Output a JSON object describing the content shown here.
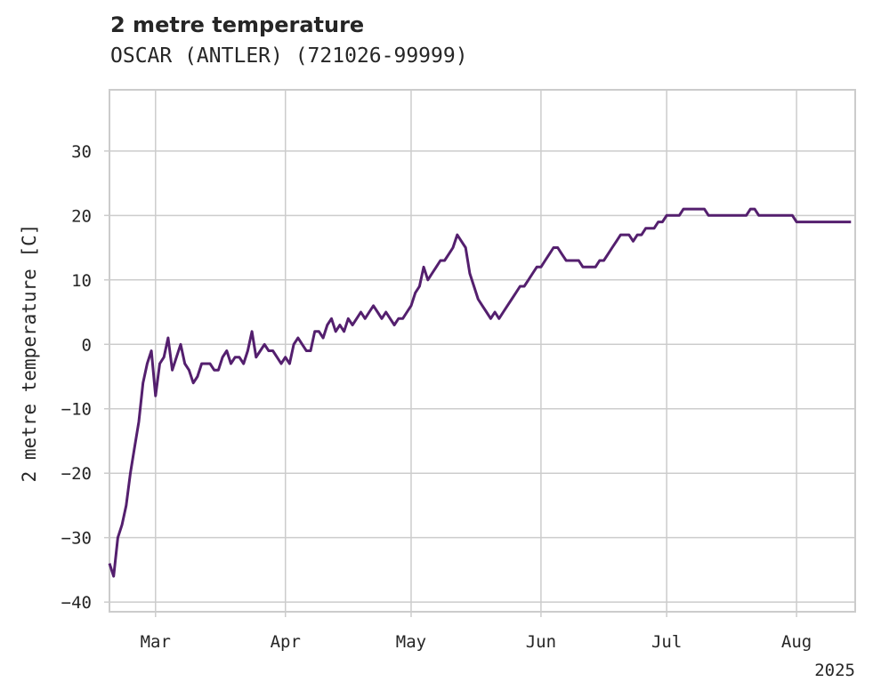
{
  "chart_data": {
    "type": "line",
    "title": "2 metre temperature",
    "subtitle": "OSCAR (ANTLER) (721026-99999)",
    "ylabel": "2 metre temperature [C]",
    "xlabel": "",
    "year_label": "2025",
    "xlim": [
      "2025-02-18",
      "2025-08-15"
    ],
    "ylim": [
      -41.5,
      39.5
    ],
    "x_ticks": [
      {
        "date": "2025-03-01",
        "label": "Mar"
      },
      {
        "date": "2025-04-01",
        "label": "Apr"
      },
      {
        "date": "2025-05-01",
        "label": "May"
      },
      {
        "date": "2025-06-01",
        "label": "Jun"
      },
      {
        "date": "2025-07-01",
        "label": "Jul"
      },
      {
        "date": "2025-08-01",
        "label": "Aug"
      }
    ],
    "y_ticks": [
      -40,
      -30,
      -20,
      -10,
      0,
      10,
      20,
      30
    ],
    "grid": true,
    "colors": {
      "line": "#541f6e",
      "grid": "#cccccc",
      "axis": "#cccccc",
      "text": "#262626"
    },
    "series": [
      {
        "x": [
          "2025-02-18",
          "2025-02-19",
          "2025-02-20",
          "2025-02-21",
          "2025-02-22",
          "2025-02-23",
          "2025-02-24",
          "2025-02-25",
          "2025-02-26",
          "2025-02-27",
          "2025-02-28",
          "2025-03-01",
          "2025-03-02",
          "2025-03-03",
          "2025-03-04",
          "2025-03-05",
          "2025-03-06",
          "2025-03-07",
          "2025-03-08",
          "2025-03-09",
          "2025-03-10",
          "2025-03-11",
          "2025-03-12",
          "2025-03-13",
          "2025-03-14",
          "2025-03-15",
          "2025-03-16",
          "2025-03-17",
          "2025-03-18",
          "2025-03-19",
          "2025-03-20",
          "2025-03-21",
          "2025-03-22",
          "2025-03-23",
          "2025-03-24",
          "2025-03-25",
          "2025-03-26",
          "2025-03-27",
          "2025-03-28",
          "2025-03-29",
          "2025-03-30",
          "2025-03-31",
          "2025-04-01",
          "2025-04-02",
          "2025-04-03",
          "2025-04-04",
          "2025-04-05",
          "2025-04-06",
          "2025-04-07",
          "2025-04-08",
          "2025-04-09",
          "2025-04-10",
          "2025-04-11",
          "2025-04-12",
          "2025-04-13",
          "2025-04-14",
          "2025-04-15",
          "2025-04-16",
          "2025-04-17",
          "2025-04-18",
          "2025-04-19",
          "2025-04-20",
          "2025-04-21",
          "2025-04-22",
          "2025-04-23",
          "2025-04-24",
          "2025-04-25",
          "2025-04-26",
          "2025-04-27",
          "2025-04-28",
          "2025-04-29",
          "2025-04-30",
          "2025-05-01",
          "2025-05-02",
          "2025-05-03",
          "2025-05-04",
          "2025-05-05",
          "2025-05-06",
          "2025-05-07",
          "2025-05-08",
          "2025-05-09",
          "2025-05-10",
          "2025-05-11",
          "2025-05-12",
          "2025-05-13",
          "2025-05-14",
          "2025-05-15",
          "2025-05-16",
          "2025-05-17",
          "2025-05-18",
          "2025-05-19",
          "2025-05-20",
          "2025-05-21",
          "2025-05-22",
          "2025-05-23",
          "2025-05-24",
          "2025-05-25",
          "2025-05-26",
          "2025-05-27",
          "2025-05-28",
          "2025-05-29",
          "2025-05-30",
          "2025-05-31",
          "2025-06-01",
          "2025-06-02",
          "2025-06-03",
          "2025-06-04",
          "2025-06-05",
          "2025-06-06",
          "2025-06-07",
          "2025-06-08",
          "2025-06-09",
          "2025-06-10",
          "2025-06-11",
          "2025-06-12",
          "2025-06-13",
          "2025-06-14",
          "2025-06-15",
          "2025-06-16",
          "2025-06-17",
          "2025-06-18",
          "2025-06-19",
          "2025-06-20",
          "2025-06-21",
          "2025-06-22",
          "2025-06-23",
          "2025-06-24",
          "2025-06-25",
          "2025-06-26",
          "2025-06-27",
          "2025-06-28",
          "2025-06-29",
          "2025-06-30",
          "2025-07-01",
          "2025-07-02",
          "2025-07-03",
          "2025-07-04",
          "2025-07-05",
          "2025-07-06",
          "2025-07-07",
          "2025-07-08",
          "2025-07-09",
          "2025-07-10",
          "2025-07-11",
          "2025-07-12",
          "2025-07-13",
          "2025-07-14",
          "2025-07-15",
          "2025-07-16",
          "2025-07-17",
          "2025-07-18",
          "2025-07-19",
          "2025-07-20",
          "2025-07-21",
          "2025-07-22",
          "2025-07-23",
          "2025-07-24",
          "2025-07-25",
          "2025-07-26",
          "2025-07-27",
          "2025-07-28",
          "2025-07-29",
          "2025-07-30",
          "2025-07-31",
          "2025-08-01",
          "2025-08-02",
          "2025-08-03",
          "2025-08-04",
          "2025-08-05",
          "2025-08-06",
          "2025-08-07",
          "2025-08-08",
          "2025-08-09",
          "2025-08-10",
          "2025-08-11",
          "2025-08-12",
          "2025-08-13",
          "2025-08-14"
        ],
        "values": [
          -34,
          -36,
          -30,
          -28,
          -25,
          -20,
          -16,
          -12,
          -6,
          -3,
          -1,
          -8,
          -3,
          -2,
          1,
          -4,
          -2,
          0,
          -3,
          -4,
          -6,
          -5,
          -3,
          -3,
          -3,
          -4,
          -4,
          -2,
          -1,
          -3,
          -2,
          -2,
          -3,
          -1,
          2,
          -2,
          -1,
          0,
          -1,
          -1,
          -2,
          -3,
          -2,
          -3,
          0,
          1,
          0,
          -1,
          -1,
          2,
          2,
          1,
          3,
          4,
          2,
          3,
          2,
          4,
          3,
          4,
          5,
          4,
          5,
          6,
          5,
          4,
          5,
          4,
          3,
          4,
          4,
          5,
          6,
          8,
          9,
          12,
          10,
          11,
          12,
          13,
          13,
          14,
          15,
          17,
          16,
          15,
          11,
          9,
          7,
          6,
          5,
          4,
          5,
          4,
          5,
          6,
          7,
          8,
          9,
          9,
          10,
          11,
          12,
          12,
          13,
          14,
          15,
          15,
          14,
          13,
          13,
          13,
          13,
          12,
          12,
          12,
          12,
          13,
          13,
          14,
          15,
          16,
          17,
          17,
          17,
          16,
          17,
          17,
          18,
          18,
          18,
          19,
          19,
          20,
          20,
          20,
          20,
          21,
          21,
          21,
          21,
          21,
          21,
          20,
          20,
          20,
          20,
          20,
          20,
          20,
          20,
          20,
          20,
          21,
          21,
          20,
          20,
          20,
          20,
          20,
          20,
          20,
          20,
          20,
          19,
          19,
          19,
          19,
          19,
          19,
          19,
          19,
          19,
          19,
          19,
          19,
          19,
          19
        ]
      }
    ]
  }
}
